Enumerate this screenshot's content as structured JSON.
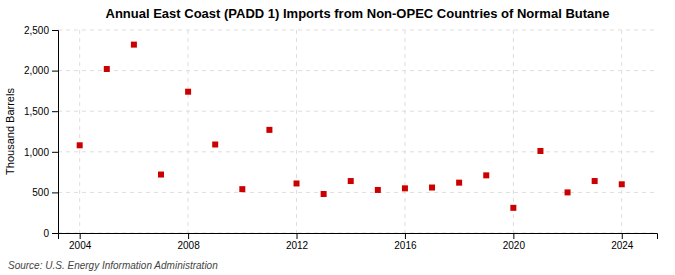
{
  "chart_data": {
    "type": "scatter",
    "title": "Annual East Coast (PADD 1) Imports from Non-OPEC Countries of Normal Butane",
    "y_label": "Thousand Barrels",
    "annotations": [
      "Source: U.S. Energy Information Administration"
    ],
    "x": [
      2004,
      2005,
      2006,
      2007,
      2008,
      2009,
      2010,
      2011,
      2012,
      2013,
      2014,
      2015,
      2016,
      2017,
      2018,
      2019,
      2020,
      2021,
      2022,
      2023,
      2024
    ],
    "values": [
      1080,
      2020,
      2320,
      720,
      1740,
      1090,
      540,
      1270,
      610,
      480,
      640,
      530,
      550,
      560,
      620,
      710,
      310,
      1010,
      500,
      640,
      600
    ],
    "color": "#cc0000",
    "marker": "square",
    "xlim": [
      2003.2,
      2025.3
    ],
    "xticks": [
      2004,
      2008,
      2012,
      2016,
      2020,
      2024
    ],
    "ylim": [
      0,
      2500
    ],
    "yticks": [
      0,
      500,
      {
        "value": 1000,
        "label": "1,000"
      },
      {
        "value": 1500,
        "label": "1,500"
      },
      {
        "value": 2000,
        "label": "2,000"
      },
      {
        "value": 2500,
        "label": "2,500"
      }
    ],
    "grid": true
  }
}
